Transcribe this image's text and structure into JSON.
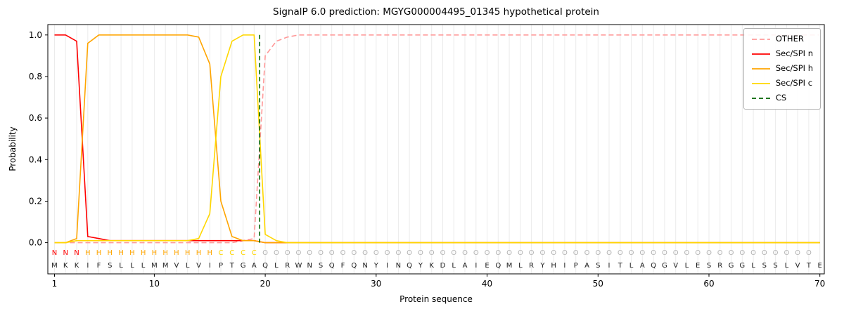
{
  "chart_data": {
    "type": "line",
    "title": "SignalP 6.0 prediction: MGYG000004495_01345 hypothetical protein",
    "xlabel": "Protein sequence",
    "ylabel": "Probability",
    "x": "residue positions 1 to 70",
    "xlim": [
      0.4,
      70.4
    ],
    "ylim": [
      -0.15,
      1.05
    ],
    "x_ticks": [
      1,
      10,
      20,
      30,
      40,
      50,
      60,
      70
    ],
    "y_ticks": [
      0.0,
      0.2,
      0.4,
      0.6,
      0.8,
      1.0
    ],
    "grid": "vertical gridline at every residue position",
    "legend_position": "upper right",
    "series": [
      {
        "name": "OTHER",
        "color": "#ff9999",
        "dash": "7 4",
        "values": [
          0,
          0,
          0,
          0,
          0,
          0,
          0,
          0,
          0,
          0,
          0,
          0,
          0,
          0,
          0,
          0,
          0,
          0.01,
          0.02,
          0.9,
          0.97,
          0.99,
          1,
          1,
          1,
          1,
          1,
          1,
          1,
          1,
          1,
          1,
          1,
          1,
          1,
          1,
          1,
          1,
          1,
          1,
          1,
          1,
          1,
          1,
          1,
          1,
          1,
          1,
          1,
          1,
          1,
          1,
          1,
          1,
          1,
          1,
          1,
          1,
          1,
          1,
          1,
          1,
          1,
          1,
          1,
          1,
          1,
          1,
          1,
          1
        ]
      },
      {
        "name": "Sec/SPI n",
        "color": "#ff0000",
        "dash": null,
        "values": [
          1,
          1,
          0.97,
          0.03,
          0.02,
          0.01,
          0.01,
          0.01,
          0.01,
          0.01,
          0.01,
          0.01,
          0.01,
          0.01,
          0.01,
          0.01,
          0.01,
          0.01,
          0.01,
          0,
          0,
          0,
          0,
          0,
          0,
          0,
          0,
          0,
          0,
          0,
          0,
          0,
          0,
          0,
          0,
          0,
          0,
          0,
          0,
          0,
          0,
          0,
          0,
          0,
          0,
          0,
          0,
          0,
          0,
          0,
          0,
          0,
          0,
          0,
          0,
          0,
          0,
          0,
          0,
          0,
          0,
          0,
          0,
          0,
          0,
          0,
          0,
          0,
          0,
          0
        ]
      },
      {
        "name": "Sec/SPI h",
        "color": "#ffa500",
        "dash": null,
        "values": [
          0,
          0,
          0.02,
          0.96,
          1,
          1,
          1,
          1,
          1,
          1,
          1,
          1,
          1,
          0.99,
          0.86,
          0.2,
          0.03,
          0.01,
          0.01,
          0,
          0,
          0,
          0,
          0,
          0,
          0,
          0,
          0,
          0,
          0,
          0,
          0,
          0,
          0,
          0,
          0,
          0,
          0,
          0,
          0,
          0,
          0,
          0,
          0,
          0,
          0,
          0,
          0,
          0,
          0,
          0,
          0,
          0,
          0,
          0,
          0,
          0,
          0,
          0,
          0,
          0,
          0,
          0,
          0,
          0,
          0,
          0,
          0,
          0,
          0
        ]
      },
      {
        "name": "Sec/SPI c",
        "color": "#ffd700",
        "dash": null,
        "values": [
          0,
          0,
          0.01,
          0.01,
          0.01,
          0.01,
          0.01,
          0.01,
          0.01,
          0.01,
          0.01,
          0.01,
          0.01,
          0.02,
          0.14,
          0.8,
          0.97,
          1,
          1,
          0.04,
          0.01,
          0,
          0,
          0,
          0,
          0,
          0,
          0,
          0,
          0,
          0,
          0,
          0,
          0,
          0,
          0,
          0,
          0,
          0,
          0,
          0,
          0,
          0,
          0,
          0,
          0,
          0,
          0,
          0,
          0,
          0,
          0,
          0,
          0,
          0,
          0,
          0,
          0,
          0,
          0,
          0,
          0,
          0,
          0,
          0,
          0,
          0,
          0,
          0,
          0
        ]
      },
      {
        "name": "CS",
        "color": "#006400",
        "dash": "6 4",
        "type": "vline",
        "x_position": 19.5,
        "y_span": [
          0,
          1.0
        ]
      }
    ],
    "sequence": "MKKIFSLLLMMVLVIPTGAQLRWNSQFQNYINQYKDLAIEQMLRYHIPASITLAQGVLESRGGLSSLVTE",
    "residue_labels": "NNNHHHHHHHHHHHHCCCCOOOOOOOOOOOOOOOOOOOOOOOOOOOOOOOOOOOOOOOOOOOOOOOOOO",
    "label_colors": {
      "N": "#ff0000",
      "H": "#ffa500",
      "C": "#ffd700",
      "O": "#b3b3b3"
    },
    "sequence_color": "#1a1a1a"
  }
}
